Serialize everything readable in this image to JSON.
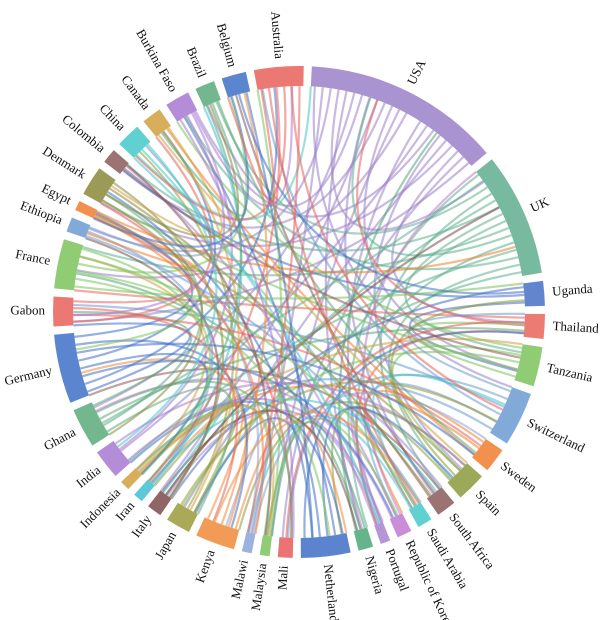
{
  "chart_data": {
    "type": "chord",
    "categories": [
      "USA",
      "UK",
      "Uganda",
      "Thailand",
      "Tanzania",
      "Switzerland",
      "Sweden",
      "Spain",
      "South Africa",
      "Saudi Arabia",
      "Republic of Korea",
      "Portugal",
      "Nigeria",
      "Netherlands",
      "Mali",
      "Malaysia",
      "Malawi",
      "Kenya",
      "Japan",
      "Italy",
      "Iran",
      "Indonesia",
      "India",
      "Ghana",
      "Germany",
      "Gabon",
      "France",
      "Ethiopia",
      "Egypt",
      "Denmark",
      "Colombia",
      "China",
      "Canada",
      "Burkina Faso",
      "Brazil",
      "Belgium",
      "Australia"
    ],
    "values": [
      40,
      25,
      5,
      5,
      8,
      11,
      5,
      6,
      4,
      3,
      3,
      2,
      3,
      10,
      3,
      2,
      2,
      8,
      5,
      3,
      2,
      2,
      6,
      8,
      14,
      6,
      10,
      3,
      2,
      6,
      3,
      5,
      4,
      5,
      4,
      5,
      10
    ],
    "colors": [
      "#9b80c9",
      "#5fae8e",
      "#4670c4",
      "#e8645a",
      "#7cc35a",
      "#6b9bd2",
      "#f07d2e",
      "#8a9a3b",
      "#8b5a5a",
      "#45c8c8",
      "#c07ad0",
      "#a784d0",
      "#4aa777",
      "#3f6fc5",
      "#e85a5a",
      "#7cc35a",
      "#8aa4d9",
      "#f08a3a",
      "#9a9a3a",
      "#7b4a4a",
      "#40c0d0",
      "#d0a040",
      "#a878d0",
      "#5aaa7a",
      "#4070c8",
      "#e8605a",
      "#7cc35a",
      "#6b9bd2",
      "#f07d2e",
      "#8a8a3a",
      "#8b5a5a",
      "#45c8c8",
      "#d0a040",
      "#a878d0",
      "#5aaa7a",
      "#4070c8",
      "#e8605a"
    ]
  }
}
